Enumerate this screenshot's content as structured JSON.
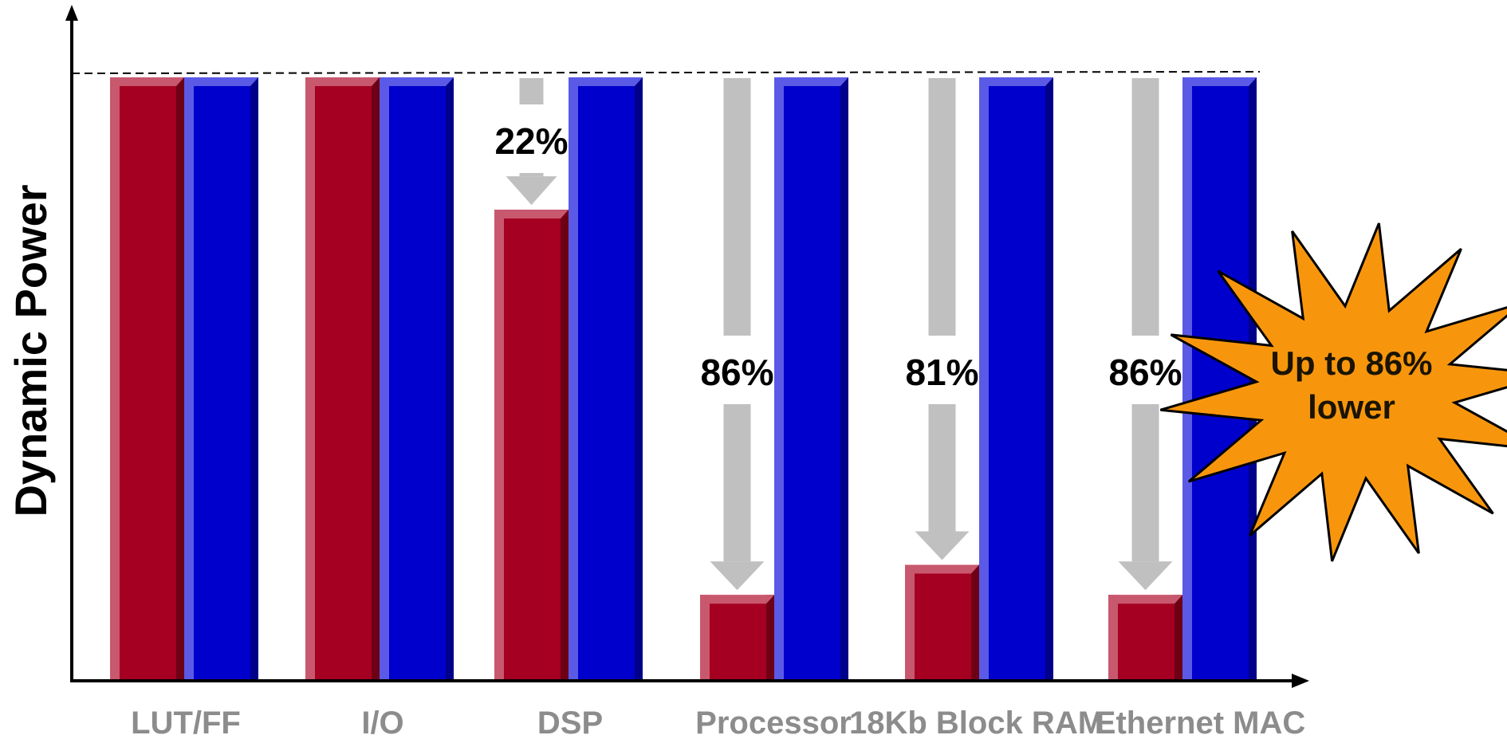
{
  "chart_data": {
    "type": "bar",
    "title": "",
    "xlabel": "",
    "ylabel": "Dynamic Power",
    "categories": [
      "LUT/FF",
      "I/O",
      "DSP",
      "Processor",
      "18Kb Block RAM",
      "Ethernet MAC"
    ],
    "series": [
      {
        "values": [
          100,
          100,
          78,
          14,
          19,
          14
        ]
      },
      {
        "values": [
          100,
          100,
          100,
          100,
          100,
          100
        ]
      }
    ],
    "reductions": [
      "",
      "",
      "22%",
      "86%",
      "81%",
      "86%"
    ],
    "ylim": [
      0,
      100
    ],
    "grid": false,
    "legend": "none",
    "reference_line": 100,
    "callout": "Up to 86% lower",
    "colors": {
      "series_0": "#a50021",
      "series_1": "#0000cc",
      "arrow": "#c0c0c0",
      "callout_fill": "#f7960d"
    }
  }
}
